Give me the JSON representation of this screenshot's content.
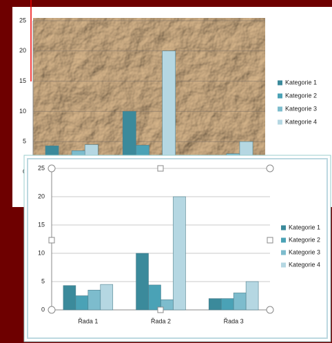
{
  "chart_data": {
    "type": "bar",
    "categories": [
      "Řada 1",
      "Řada 2",
      "Řada 3"
    ],
    "series": [
      {
        "name": "Kategorie 1",
        "color": "#3b8a9b",
        "values": [
          4.3,
          10,
          2
        ]
      },
      {
        "name": "Kategorie 2",
        "color": "#4aa2b6",
        "values": [
          2.5,
          4.4,
          2
        ]
      },
      {
        "name": "Kategorie 3",
        "color": "#7dbccd",
        "values": [
          3.5,
          1.8,
          3
        ]
      },
      {
        "name": "Kategorie 4",
        "color": "#b5d7e2",
        "values": [
          4.5,
          20,
          5
        ]
      }
    ],
    "ylim": [
      0,
      25
    ],
    "yticks": [
      0,
      5,
      10,
      15,
      20,
      25
    ],
    "grid": true,
    "legend": "right"
  }
}
